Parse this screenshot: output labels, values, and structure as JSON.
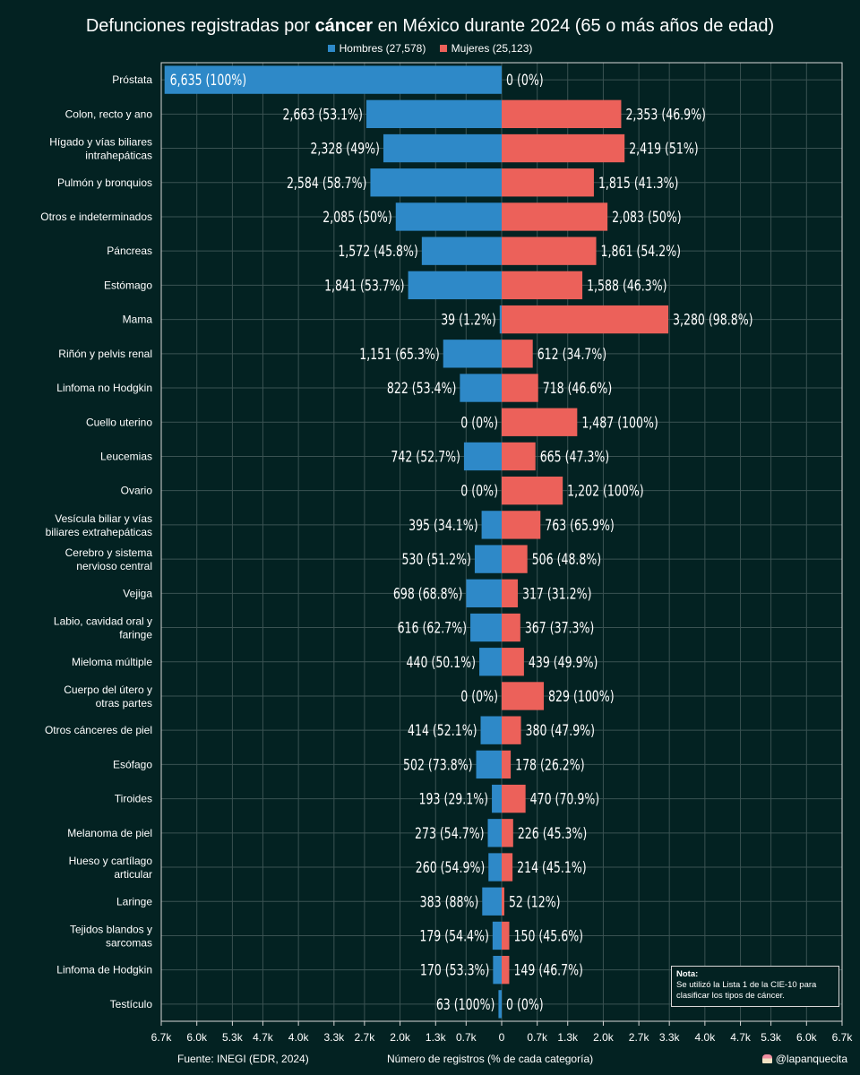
{
  "title": {
    "pre": "Defunciones registradas por ",
    "bold": "cáncer",
    "post": " en México durante 2024 (65 o más años de edad)"
  },
  "legend": {
    "men": "Hombres (27,578)",
    "women": "Mujeres (25,123)"
  },
  "colors": {
    "men": "#2e89c8",
    "women": "#ec615a",
    "background": "#032222",
    "grid": "#3a5252"
  },
  "footer": {
    "source": "Fuente: INEGI (EDR, 2024)",
    "xlabel": "Número de registros (% de cada categoría)",
    "handle": "@lapanquecita"
  },
  "note": {
    "title": "Nota:",
    "text": "Se utilizó la Lista 1 de la CIE-10 para clasificar los tipos de cáncer."
  },
  "chart_data": {
    "type": "bar",
    "orientation": "horizontal-diverging",
    "title": "Defunciones registradas por cáncer en México durante 2024 (65 o más años de edad)",
    "xlabel": "Número de registros (% de cada categoría)",
    "xlim": [
      -6700,
      6700
    ],
    "xticks": [
      -6700,
      -6000,
      -5300,
      -4700,
      -4000,
      -3300,
      -2700,
      -2000,
      -1300,
      -700,
      0,
      700,
      1300,
      2000,
      2700,
      3300,
      4000,
      4700,
      5300,
      6000,
      6700
    ],
    "xtick_labels": [
      "6.7k",
      "6.0k",
      "5.3k",
      "4.7k",
      "4.0k",
      "3.3k",
      "2.7k",
      "2.0k",
      "1.3k",
      "0.7k",
      "0",
      "0.7k",
      "1.3k",
      "2.0k",
      "2.7k",
      "3.3k",
      "4.0k",
      "4.7k",
      "5.3k",
      "6.0k",
      "6.7k"
    ],
    "categories": [
      [
        "Próstata"
      ],
      [
        "Colon, recto y ano"
      ],
      [
        "Hígado y vías biliares",
        "intrahepáticas"
      ],
      [
        "Pulmón y bronquios"
      ],
      [
        "Otros e indeterminados"
      ],
      [
        "Páncreas"
      ],
      [
        "Estómago"
      ],
      [
        "Mama"
      ],
      [
        "Riñón y pelvis renal"
      ],
      [
        "Linfoma no Hodgkin"
      ],
      [
        "Cuello uterino"
      ],
      [
        "Leucemias"
      ],
      [
        "Ovario"
      ],
      [
        "Vesícula biliar y vías",
        "biliares extrahepáticas"
      ],
      [
        "Cerebro y sistema",
        "nervioso central"
      ],
      [
        "Vejiga"
      ],
      [
        "Labio, cavidad oral y",
        "faringe"
      ],
      [
        "Mieloma múltiple"
      ],
      [
        "Cuerpo del útero y",
        "otras partes"
      ],
      [
        "Otros cánceres de piel"
      ],
      [
        "Esófago"
      ],
      [
        "Tiroides"
      ],
      [
        "Melanoma de piel"
      ],
      [
        "Hueso y cartílago",
        "articular"
      ],
      [
        "Laringe"
      ],
      [
        "Tejidos blandos y",
        "sarcomas"
      ],
      [
        "Linfoma de Hodgkin"
      ],
      [
        "Testículo"
      ]
    ],
    "series": [
      {
        "name": "Hombres",
        "values": [
          6635,
          2663,
          2328,
          2584,
          2085,
          1572,
          1841,
          39,
          1151,
          822,
          0,
          742,
          0,
          395,
          530,
          698,
          616,
          440,
          0,
          414,
          502,
          193,
          273,
          260,
          383,
          179,
          170,
          63
        ],
        "labels": [
          "6,635 (100%)",
          "2,663 (53.1%)",
          "2,328 (49%)",
          "2,584 (58.7%)",
          "2,085 (50%)",
          "1,572 (45.8%)",
          "1,841 (53.7%)",
          "39 (1.2%)",
          "1,151 (65.3%)",
          "822 (53.4%)",
          "0 (0%)",
          "742 (52.7%)",
          "0 (0%)",
          "395 (34.1%)",
          "530 (51.2%)",
          "698 (68.8%)",
          "616 (62.7%)",
          "440 (50.1%)",
          "0 (0%)",
          "414 (52.1%)",
          "502 (73.8%)",
          "193 (29.1%)",
          "273 (54.7%)",
          "260 (54.9%)",
          "383 (88%)",
          "179 (54.4%)",
          "170 (53.3%)",
          "63 (100%)"
        ]
      },
      {
        "name": "Mujeres",
        "values": [
          0,
          2353,
          2419,
          1815,
          2083,
          1861,
          1588,
          3280,
          612,
          718,
          1487,
          665,
          1202,
          763,
          506,
          317,
          367,
          439,
          829,
          380,
          178,
          470,
          226,
          214,
          52,
          150,
          149,
          0
        ],
        "labels": [
          "0 (0%)",
          "2,353 (46.9%)",
          "2,419 (51%)",
          "1,815 (41.3%)",
          "2,083 (50%)",
          "1,861 (54.2%)",
          "1,588 (46.3%)",
          "3,280 (98.8%)",
          "612 (34.7%)",
          "718 (46.6%)",
          "1,487 (100%)",
          "665 (47.3%)",
          "1,202 (100%)",
          "763 (65.9%)",
          "506 (48.8%)",
          "317 (31.2%)",
          "367 (37.3%)",
          "439 (49.9%)",
          "829 (100%)",
          "380 (47.9%)",
          "178 (26.2%)",
          "470 (70.9%)",
          "226 (45.3%)",
          "214 (45.1%)",
          "52 (12%)",
          "150 (45.6%)",
          "149 (46.7%)",
          "0 (0%)"
        ]
      }
    ]
  }
}
